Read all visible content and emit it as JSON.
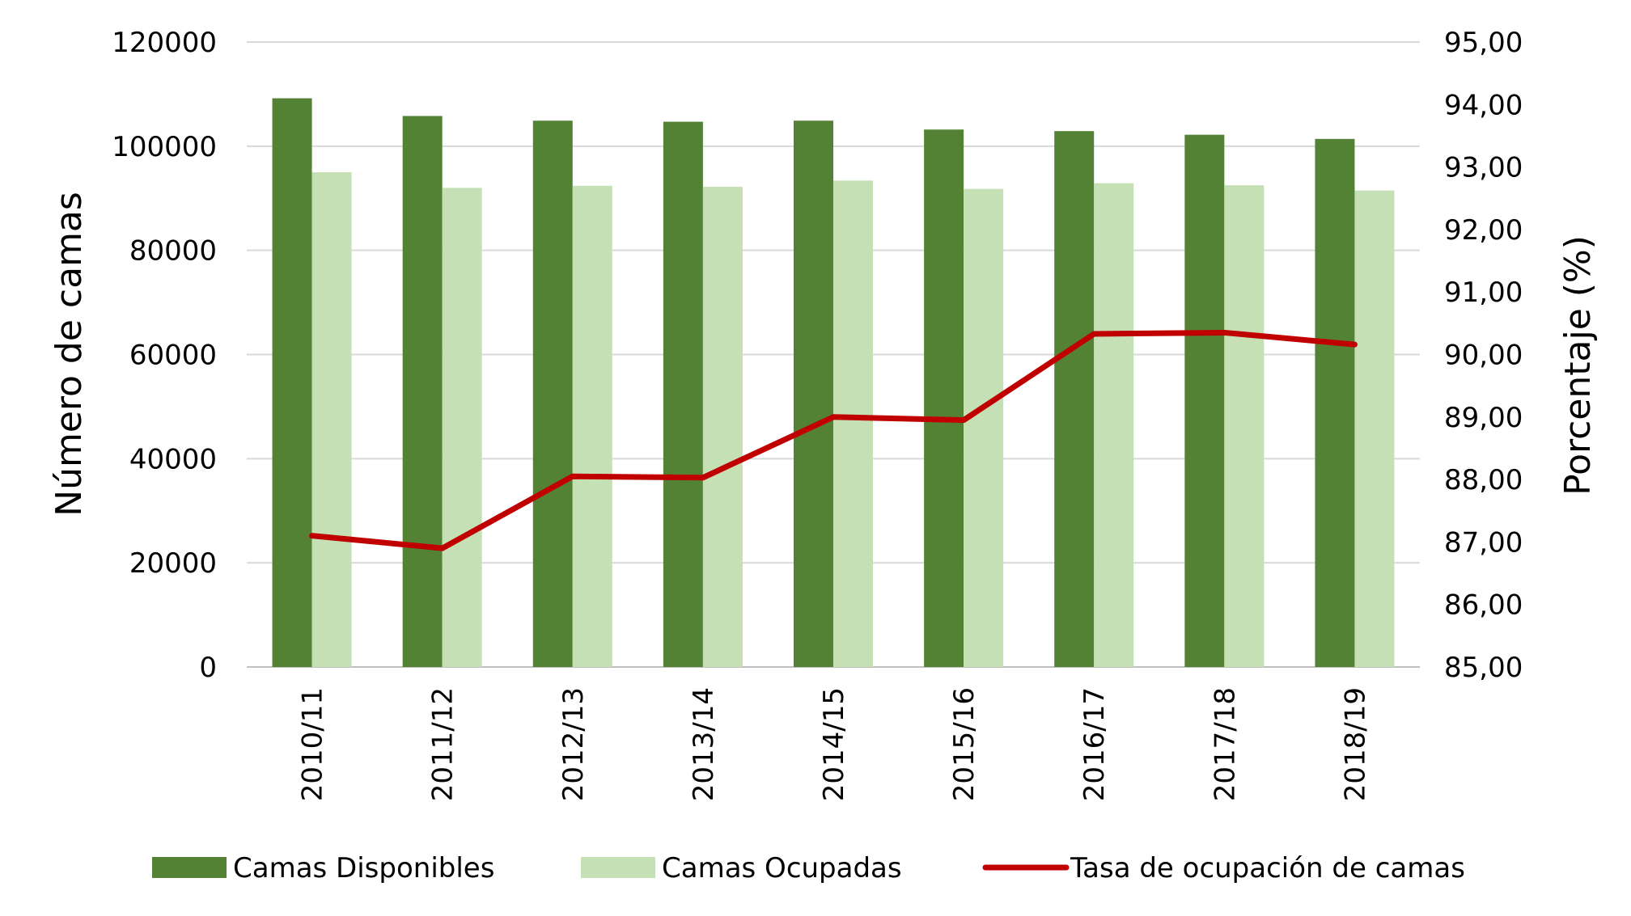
{
  "chart_data": {
    "type": "bar",
    "categories": [
      "2010/11",
      "2011/12",
      "2012/13",
      "2013/14",
      "2014/15",
      "2015/16",
      "2016/17",
      "2017/18",
      "2018/19"
    ],
    "series": [
      {
        "name": "Camas Disponibles",
        "type": "bar",
        "axis": "left",
        "color": "#548235",
        "values": [
          109200,
          105800,
          104900,
          104700,
          104900,
          103200,
          102900,
          102200,
          101400
        ]
      },
      {
        "name": "Camas Ocupadas",
        "type": "bar",
        "axis": "left",
        "color": "#C5E0B4",
        "values": [
          95000,
          92000,
          92400,
          92200,
          93400,
          91800,
          92900,
          92500,
          91500
        ]
      },
      {
        "name": "Tasa de ocupación de camas",
        "type": "line",
        "axis": "right",
        "color": "#C00000",
        "values": [
          87.1,
          86.9,
          88.05,
          88.03,
          89.0,
          88.95,
          90.33,
          90.35,
          90.16
        ]
      }
    ],
    "ylabel": "Número de camas",
    "y2label": "Porcentaje (%)",
    "ylim": [
      0,
      120000
    ],
    "y2lim": [
      85,
      95
    ],
    "yticks": [
      "0",
      "20000",
      "40000",
      "60000",
      "80000",
      "100000",
      "120000"
    ],
    "y2ticks": [
      "85,00",
      "86,00",
      "87,00",
      "88,00",
      "89,00",
      "90,00",
      "91,00",
      "92,00",
      "93,00",
      "94,00",
      "95,00"
    ],
    "grid": true,
    "gridline_color": "#D9D9D9",
    "legend_position": "bottom"
  }
}
